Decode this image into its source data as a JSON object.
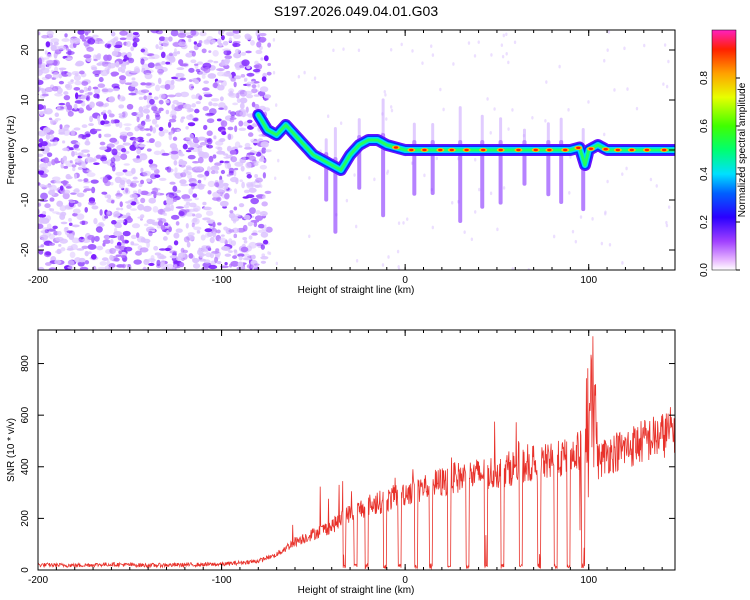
{
  "title": "S197.2026.049.04.01.G03",
  "colors": {
    "spectral_mark": "#7a1cff",
    "snr_line": "#e8312a",
    "frame": "#000000",
    "zero_line": "#404040"
  },
  "colorbar": {
    "label": "Normalized spectral amplitude",
    "range": [
      0.0,
      1.0
    ],
    "ticks": [
      "0.0",
      "0.2",
      "0.4",
      "0.6",
      "0.8"
    ],
    "tick_values": [
      0.0,
      0.2,
      0.4,
      0.6,
      0.8
    ]
  },
  "chart_data": [
    {
      "id": "spectrogram",
      "type": "heatmap",
      "title": "",
      "xlabel": "Height of straight line (km)",
      "ylabel": "Frequency (Hz)",
      "xlim": [
        -200,
        147
      ],
      "ylim": [
        -24,
        24
      ],
      "xticks": [
        -200,
        -100,
        0,
        100
      ],
      "xtick_labels": [
        "-200",
        "-100",
        "0",
        "100"
      ],
      "yticks": [
        -20,
        -10,
        0,
        10,
        20
      ],
      "ytick_labels": [
        "-20",
        "-10",
        "0",
        "10",
        "20"
      ],
      "ridge": {
        "name": "dominant frequency (amplitude ~1.0)",
        "x": [
          -80,
          -75,
          -70,
          -65,
          -60,
          -55,
          -50,
          -45,
          -40,
          -35,
          -30,
          -25,
          -20,
          -15,
          -10,
          -5,
          0,
          10,
          20,
          30,
          40,
          50,
          60,
          70,
          80,
          90,
          95,
          98,
          100,
          105,
          110,
          120,
          130,
          140,
          147
        ],
        "y": [
          7,
          4,
          3,
          5,
          3,
          1,
          -1,
          -2,
          -3,
          -4,
          -1,
          1,
          2,
          2,
          1,
          0.5,
          0,
          0,
          0,
          0,
          0,
          0,
          0,
          0,
          0,
          0,
          0.5,
          -3,
          0,
          1,
          0,
          0,
          0,
          0,
          0
        ]
      },
      "noise_region_x": [
        -200,
        -80
      ],
      "vertical_streaks_x": [
        -43,
        -38,
        -25,
        -12,
        5,
        15,
        30,
        42,
        52,
        65,
        78,
        85,
        97
      ]
    },
    {
      "id": "snr",
      "type": "line",
      "title": "",
      "xlabel": "Height of straight line (km)",
      "ylabel": "SNR (10 * v/v)",
      "xlim": [
        -200,
        147
      ],
      "ylim": [
        0,
        930
      ],
      "xticks": [
        -200,
        -100,
        0,
        100
      ],
      "xtick_labels": [
        "-200",
        "-100",
        "0",
        "100"
      ],
      "yticks": [
        0,
        200,
        400,
        600,
        800
      ],
      "ytick_labels": [
        "0",
        "200",
        "400",
        "600",
        "800"
      ],
      "series": [
        {
          "name": "SNR",
          "x": [
            -200,
            -180,
            -160,
            -140,
            -120,
            -100,
            -90,
            -80,
            -70,
            -60,
            -50,
            -40,
            -30,
            -20,
            -10,
            0,
            10,
            20,
            30,
            40,
            50,
            60,
            70,
            80,
            90,
            95,
            100,
            102,
            105,
            110,
            120,
            130,
            140,
            147
          ],
          "y": [
            20,
            18,
            22,
            18,
            20,
            22,
            28,
            35,
            60,
            110,
            140,
            170,
            220,
            250,
            270,
            300,
            320,
            340,
            360,
            370,
            380,
            400,
            410,
            420,
            440,
            460,
            480,
            900,
            420,
            450,
            470,
            500,
            520,
            550
          ]
        }
      ],
      "dropouts_x": [
        -33,
        -27,
        -21,
        -11,
        -3,
        6,
        14,
        24,
        34,
        44,
        53,
        63,
        73,
        82,
        89,
        97
      ]
    }
  ]
}
